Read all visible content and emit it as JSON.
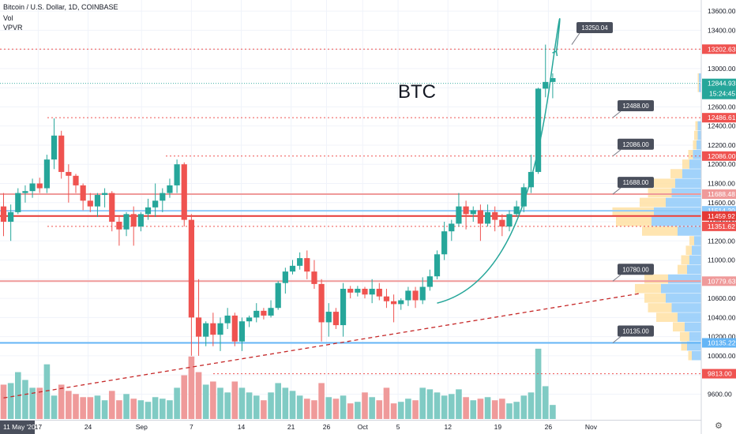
{
  "header": {
    "symbol_line": "Bitcoin / U.S. Dollar, 1D, COINBASE",
    "indicators": [
      "Vol",
      "VPVR"
    ]
  },
  "annotation_title": "BTC",
  "axis_settings_icon": "gear-icon",
  "chart_data": {
    "type": "candlestick",
    "title": "BTC",
    "y_range": [
      9480,
      13650
    ],
    "y_ticks": [
      9600,
      9800,
      10000,
      10200,
      10400,
      10600,
      10800,
      11000,
      11200,
      11400,
      11600,
      11800,
      12000,
      12200,
      12400,
      12600,
      12800,
      13000,
      13200,
      13400,
      13600
    ],
    "y_tick_labels": [
      "9600.00",
      "9800.00",
      "10000.00",
      "10200.00",
      "10400.00",
      "10600.00",
      "10800.00",
      "11000.00",
      "11200.00",
      "11400.00",
      "11600.00",
      "11800.00",
      "12000.00",
      "12200.00",
      "12400.00",
      "12600.00",
      "12800.00",
      "13000.00",
      "13200.00",
      "13400.00",
      "13600.00"
    ],
    "x_labels": [
      {
        "text": "11 May '20",
        "bar": -0.5,
        "highlight": true
      },
      {
        "text": "17",
        "bar": 4.8
      },
      {
        "text": "24",
        "bar": 11.7
      },
      {
        "text": "Sep",
        "bar": 19.1
      },
      {
        "text": "7",
        "bar": 26.0
      },
      {
        "text": "14",
        "bar": 32.9
      },
      {
        "text": "21",
        "bar": 39.8
      },
      {
        "text": "26",
        "bar": 44.7
      },
      {
        "text": "Oct",
        "bar": 49.7
      },
      {
        "text": "5",
        "bar": 54.6
      },
      {
        "text": "12",
        "bar": 61.5
      },
      {
        "text": "19",
        "bar": 68.4
      },
      {
        "text": "26",
        "bar": 75.4
      },
      {
        "text": "Nov",
        "bar": 81.3
      }
    ],
    "candles": [
      [
        11560,
        11700,
        11250,
        11400
      ],
      [
        11400,
        11580,
        11200,
        11500
      ],
      [
        11500,
        11750,
        11480,
        11700
      ],
      [
        11700,
        11780,
        11600,
        11720
      ],
      [
        11720,
        11850,
        11650,
        11800
      ],
      [
        11800,
        11860,
        11700,
        11750
      ],
      [
        11750,
        12100,
        11700,
        12050
      ],
      [
        12050,
        12480,
        11950,
        12300
      ],
      [
        12300,
        12350,
        11850,
        11920
      ],
      [
        11920,
        12000,
        11600,
        11880
      ],
      [
        11880,
        11900,
        11700,
        11780
      ],
      [
        11780,
        11800,
        11520,
        11620
      ],
      [
        11620,
        11700,
        11500,
        11560
      ],
      [
        11560,
        11700,
        11450,
        11680
      ],
      [
        11680,
        11750,
        11550,
        11700
      ],
      [
        11700,
        11720,
        11300,
        11400
      ],
      [
        11400,
        11450,
        11150,
        11320
      ],
      [
        11320,
        11500,
        11250,
        11480
      ],
      [
        11480,
        11560,
        11150,
        11350
      ],
      [
        11350,
        11500,
        11300,
        11480
      ],
      [
        11480,
        11640,
        11420,
        11550
      ],
      [
        11550,
        11800,
        11450,
        11620
      ],
      [
        11620,
        11750,
        11500,
        11700
      ],
      [
        11700,
        11850,
        11650,
        11780
      ],
      [
        11780,
        12050,
        11700,
        12000
      ],
      [
        12000,
        12020,
        11350,
        11420
      ],
      [
        11420,
        11480,
        10000,
        10400
      ],
      [
        10400,
        10800,
        10000,
        10200
      ],
      [
        10200,
        10360,
        10100,
        10340
      ],
      [
        10340,
        10450,
        10100,
        10220
      ],
      [
        10220,
        10400,
        10050,
        10340
      ],
      [
        10340,
        10500,
        10280,
        10420
      ],
      [
        10420,
        10450,
        10100,
        10150
      ],
      [
        10150,
        10400,
        10050,
        10360
      ],
      [
        10360,
        10420,
        10300,
        10400
      ],
      [
        10400,
        10550,
        10350,
        10470
      ],
      [
        10470,
        10500,
        10380,
        10420
      ],
      [
        10420,
        10580,
        10400,
        10500
      ],
      [
        10500,
        10780,
        10480,
        10760
      ],
      [
        10760,
        10920,
        10650,
        10880
      ],
      [
        10880,
        11000,
        10850,
        10940
      ],
      [
        10940,
        11080,
        10900,
        11020
      ],
      [
        11020,
        11100,
        10800,
        10880
      ],
      [
        10880,
        11000,
        10700,
        10750
      ],
      [
        10750,
        10800,
        10150,
        10350
      ],
      [
        10350,
        10550,
        10200,
        10460
      ],
      [
        10460,
        10500,
        10280,
        10320
      ],
      [
        10320,
        10760,
        10200,
        10700
      ],
      [
        10700,
        10730,
        10600,
        10660
      ],
      [
        10660,
        10730,
        10620,
        10700
      ],
      [
        10700,
        10720,
        10600,
        10640
      ],
      [
        10640,
        10800,
        10550,
        10700
      ],
      [
        10700,
        10760,
        10580,
        10620
      ],
      [
        10620,
        10700,
        10500,
        10570
      ],
      [
        10570,
        10640,
        10350,
        10540
      ],
      [
        10540,
        10600,
        10480,
        10580
      ],
      [
        10580,
        10720,
        10520,
        10680
      ],
      [
        10680,
        10720,
        10500,
        10580
      ],
      [
        10580,
        10820,
        10540,
        10720
      ],
      [
        10720,
        10900,
        10680,
        10830
      ],
      [
        10830,
        11100,
        10800,
        11060
      ],
      [
        11060,
        11400,
        11000,
        11300
      ],
      [
        11300,
        11420,
        11200,
        11380
      ],
      [
        11380,
        11700,
        11350,
        11560
      ],
      [
        11560,
        11620,
        11320,
        11480
      ],
      [
        11480,
        11560,
        11400,
        11520
      ],
      [
        11520,
        11580,
        11200,
        11380
      ],
      [
        11380,
        11580,
        11350,
        11500
      ],
      [
        11500,
        11560,
        11300,
        11420
      ],
      [
        11420,
        11480,
        11250,
        11350
      ],
      [
        11350,
        11520,
        11300,
        11480
      ],
      [
        11480,
        11620,
        11450,
        11560
      ],
      [
        11560,
        11800,
        11500,
        11760
      ],
      [
        11760,
        12100,
        11700,
        11920
      ],
      [
        11920,
        12800,
        11900,
        12790
      ],
      [
        12790,
        13250,
        12700,
        12860
      ],
      [
        12860,
        12950,
        12690,
        12900
      ]
    ],
    "volumes": [
      0.22,
      0.23,
      0.3,
      0.25,
      0.2,
      0.2,
      0.35,
      0.15,
      0.22,
      0.18,
      0.16,
      0.14,
      0.14,
      0.15,
      0.12,
      0.18,
      0.12,
      0.16,
      0.13,
      0.12,
      0.11,
      0.14,
      0.13,
      0.12,
      0.2,
      0.28,
      0.4,
      0.3,
      0.22,
      0.24,
      0.2,
      0.17,
      0.24,
      0.2,
      0.17,
      0.15,
      0.12,
      0.17,
      0.23,
      0.2,
      0.18,
      0.15,
      0.13,
      0.12,
      0.23,
      0.14,
      0.13,
      0.15,
      0.1,
      0.11,
      0.17,
      0.14,
      0.12,
      0.2,
      0.1,
      0.11,
      0.13,
      0.12,
      0.2,
      0.19,
      0.17,
      0.15,
      0.16,
      0.19,
      0.14,
      0.12,
      0.13,
      0.14,
      0.12,
      0.13,
      0.1,
      0.11,
      0.15,
      0.17,
      0.45,
      0.21,
      0.09
    ],
    "volume_max_hint": 0.5,
    "price_levels": [
      {
        "price": 13202.63,
        "label": "13202.63",
        "color": "#ef5350",
        "style": "dotted",
        "callout": "13250.04",
        "callout_price": 13250.04
      },
      {
        "price": 12486.61,
        "label": "12486.61",
        "color": "#ef5350",
        "style": "dotted",
        "callout": "12488.00",
        "callout_price": 12488.0
      },
      {
        "price": 12086.0,
        "label": "12086.00",
        "color": "#ef5350",
        "style": "dotted",
        "callout": "12086.00",
        "callout_price": 12086.0
      },
      {
        "price": 11688.48,
        "label": "11688.48",
        "color": "#ef9a9a",
        "style": "solid",
        "callout": "11688.00",
        "callout_price": 11688.0
      },
      {
        "price": 11514.2,
        "label": "11514.20",
        "color": "#90caf9",
        "style": "solid"
      },
      {
        "price": 11459.92,
        "label": "11459.92",
        "color": "#e53935",
        "style": "solid"
      },
      {
        "price": 11351.62,
        "label": "11351.62",
        "color": "#ef5350",
        "style": "dotted"
      },
      {
        "price": 10779.63,
        "label": "10779.63",
        "color": "#ef9a9a",
        "style": "solid",
        "callout": "10780.00",
        "callout_price": 10780.0
      },
      {
        "price": 10135.22,
        "label": "10135.22",
        "color": "#64b5f6",
        "style": "solid",
        "callout": "10135.00",
        "callout_price": 10135.0
      },
      {
        "price": 9813.0,
        "label": "9813.00",
        "color": "#ef5350",
        "style": "dotted"
      }
    ],
    "last_price": {
      "price": 12844.93,
      "label": "12844.93",
      "countdown": "15:24:45",
      "color": "#26a69a"
    },
    "trend_line": {
      "from_bar": 0,
      "from_price": 9560,
      "to_bar": 88,
      "to_price": 10650,
      "color": "#c62828"
    },
    "projection_curve": {
      "color": "#26a69a",
      "start": [
        60,
        10550
      ],
      "end": [
        76.5,
        13180
      ]
    },
    "vpvr": [
      {
        "low": 9950,
        "high": 10050,
        "up": 0.08,
        "down": 0.03
      },
      {
        "low": 10050,
        "high": 10150,
        "up": 0.12,
        "down": 0.05
      },
      {
        "low": 10150,
        "high": 10250,
        "up": 0.1,
        "down": 0.08
      },
      {
        "low": 10250,
        "high": 10350,
        "up": 0.14,
        "down": 0.1
      },
      {
        "low": 10350,
        "high": 10450,
        "up": 0.2,
        "down": 0.18
      },
      {
        "low": 10450,
        "high": 10550,
        "up": 0.25,
        "down": 0.2
      },
      {
        "low": 10550,
        "high": 10650,
        "up": 0.3,
        "down": 0.18
      },
      {
        "low": 10650,
        "high": 10750,
        "up": 0.34,
        "down": 0.22
      },
      {
        "low": 10750,
        "high": 10850,
        "up": 0.28,
        "down": 0.2
      },
      {
        "low": 10850,
        "high": 10950,
        "up": 0.12,
        "down": 0.08
      },
      {
        "low": 10950,
        "high": 11050,
        "up": 0.1,
        "down": 0.07
      },
      {
        "low": 11050,
        "high": 11150,
        "up": 0.08,
        "down": 0.05
      },
      {
        "low": 11150,
        "high": 11250,
        "up": 0.06,
        "down": 0.04
      },
      {
        "low": 11250,
        "high": 11350,
        "up": 0.2,
        "down": 0.3
      },
      {
        "low": 11350,
        "high": 11450,
        "up": 0.42,
        "down": 0.3
      },
      {
        "low": 11450,
        "high": 11550,
        "up": 0.4,
        "down": 0.35
      },
      {
        "low": 11550,
        "high": 11650,
        "up": 0.3,
        "down": 0.22
      },
      {
        "low": 11650,
        "high": 11750,
        "up": 0.25,
        "down": 0.2
      },
      {
        "low": 11750,
        "high": 11850,
        "up": 0.22,
        "down": 0.18
      },
      {
        "low": 11850,
        "high": 11950,
        "up": 0.16,
        "down": 0.1
      },
      {
        "low": 11950,
        "high": 12050,
        "up": 0.1,
        "down": 0.06
      },
      {
        "low": 12050,
        "high": 12150,
        "up": 0.07,
        "down": 0.04
      },
      {
        "low": 12150,
        "high": 12250,
        "up": 0.04,
        "down": 0.03
      },
      {
        "low": 12250,
        "high": 12350,
        "up": 0.03,
        "down": 0.03
      },
      {
        "low": 12350,
        "high": 12450,
        "up": 0.03,
        "down": 0.02
      },
      {
        "low": 12750,
        "high": 12850,
        "up": 0.02,
        "down": 0.01
      },
      {
        "low": 12850,
        "high": 12950,
        "up": 0.02,
        "down": 0.01
      }
    ],
    "colors": {
      "up": "#26a69a",
      "down": "#ef5350",
      "vol_up": "#80cbc4",
      "vol_down": "#ef9a9a",
      "grid": "#f0f3fa",
      "axis_text": "#131722",
      "vpvr_up": "#90caf9",
      "vpvr_down": "#ffe0a3"
    }
  }
}
